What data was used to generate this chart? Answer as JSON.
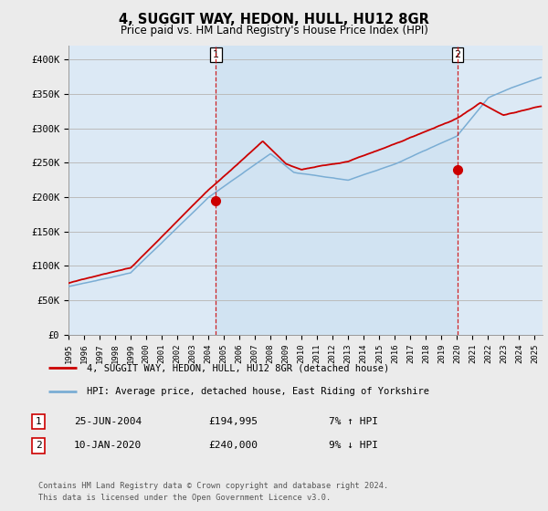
{
  "title": "4, SUGGIT WAY, HEDON, HULL, HU12 8GR",
  "subtitle": "Price paid vs. HM Land Registry's House Price Index (HPI)",
  "xlim_start": 1995.0,
  "xlim_end": 2025.5,
  "ylim": [
    0,
    420000
  ],
  "yticks": [
    0,
    50000,
    100000,
    150000,
    200000,
    250000,
    300000,
    350000,
    400000
  ],
  "ytick_labels": [
    "£0",
    "£50K",
    "£100K",
    "£150K",
    "£200K",
    "£250K",
    "£300K",
    "£350K",
    "£400K"
  ],
  "xticks": [
    1995,
    1996,
    1997,
    1998,
    1999,
    2000,
    2001,
    2002,
    2003,
    2004,
    2005,
    2006,
    2007,
    2008,
    2009,
    2010,
    2011,
    2012,
    2013,
    2014,
    2015,
    2016,
    2017,
    2018,
    2019,
    2020,
    2021,
    2022,
    2023,
    2024,
    2025
  ],
  "background_color": "#ebebeb",
  "plot_bg_color": "#dce9f5",
  "grid_color": "#bbbbbb",
  "red_line_color": "#cc0000",
  "blue_line_color": "#7aadd4",
  "t1_x": 2004.48,
  "t1_y": 194995,
  "t2_x": 2020.03,
  "t2_y": 240000,
  "shade_color": "#c8dff0",
  "legend_red_label": "4, SUGGIT WAY, HEDON, HULL, HU12 8GR (detached house)",
  "legend_blue_label": "HPI: Average price, detached house, East Riding of Yorkshire",
  "table_row1": [
    "1",
    "25-JUN-2004",
    "£194,995",
    "7% ↑ HPI"
  ],
  "table_row2": [
    "2",
    "10-JAN-2020",
    "£240,000",
    "9% ↓ HPI"
  ],
  "footer": "Contains HM Land Registry data © Crown copyright and database right 2024.\nThis data is licensed under the Open Government Licence v3.0."
}
